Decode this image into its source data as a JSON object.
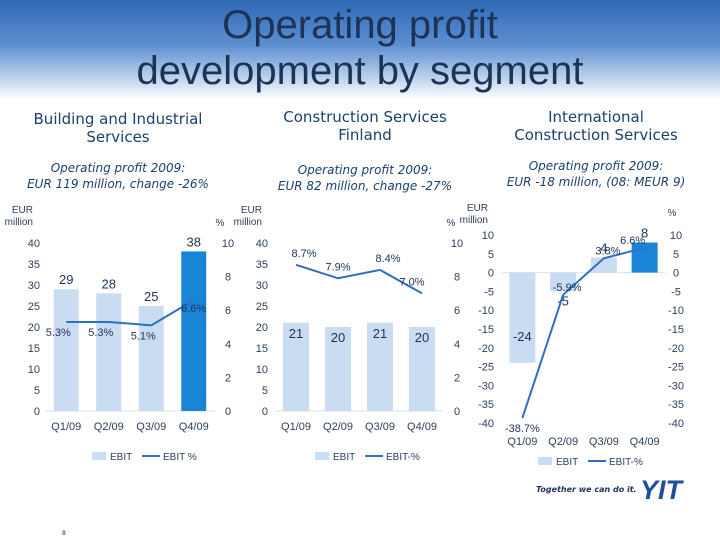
{
  "title_line1": "Operating profit",
  "title_line2": "development by segment",
  "segments": [
    {
      "title_line1": "Building and Industrial",
      "title_line2": "Services",
      "sub_line1": "Operating profit 2009:",
      "sub_line2": "EUR 119 million, change -26%"
    },
    {
      "title_line1": "Construction Services",
      "title_line2": "Finland",
      "sub_line1": "Operating profit 2009:",
      "sub_line2": "EUR 82 million, change -27%"
    },
    {
      "title_line1": "International",
      "title_line2": "Construction Services",
      "sub_line1": "Operating profit 2009:",
      "sub_line2": "EUR -18 million, (08: MEUR 9)"
    }
  ],
  "footer": {
    "slogan": "Together we can do it.",
    "logo": "YIT",
    "page_number": "8"
  },
  "colors": {
    "bar": "#c9dcf2",
    "bar_highlight": "#1a85d6",
    "line": "#2f6fc0",
    "axis_text": "#2b3f5c",
    "value_label": "#1c3357",
    "logo": "#1f4ea1"
  },
  "chart_data": [
    {
      "type": "bar",
      "categories": [
        "Q1/09",
        "Q2/09",
        "Q3/09",
        "Q4/09"
      ],
      "series": [
        {
          "name": "EBIT",
          "values": [
            29,
            28,
            25,
            38
          ]
        },
        {
          "name": "EBIT-%",
          "values": [
            5.3,
            5.3,
            5.1,
            6.6
          ]
        }
      ],
      "value_labels": [
        "29",
        "28",
        "25",
        "38"
      ],
      "pct_labels": [
        "5.3%",
        "5.3%",
        "5.1%",
        "6.6%"
      ],
      "ylabel": "EUR million",
      "y2label": "%",
      "ylim": [
        0,
        40
      ],
      "y2lim": [
        0,
        10
      ],
      "yticks": [
        "0",
        "5",
        "10",
        "15",
        "20",
        "25",
        "30",
        "35",
        "40"
      ],
      "y2ticks": [
        "0",
        "2",
        "4",
        "6",
        "8",
        "10"
      ],
      "legend": [
        "EBIT",
        "EBIT %"
      ],
      "highlight_index": 3
    },
    {
      "type": "bar",
      "categories": [
        "Q1/09",
        "Q2/09",
        "Q3/09",
        "Q4/09"
      ],
      "series": [
        {
          "name": "EBIT",
          "values": [
            21,
            20,
            21,
            20
          ]
        },
        {
          "name": "EBIT-%",
          "values": [
            8.7,
            7.9,
            8.4,
            7.0
          ]
        }
      ],
      "value_labels": [
        "21",
        "20",
        "21",
        "20"
      ],
      "pct_labels": [
        "8.7%",
        "7.9%",
        "8.4%",
        "7.0%"
      ],
      "ylabel": "EUR million",
      "y2label": "%",
      "ylim": [
        0,
        40
      ],
      "y2lim": [
        0,
        10
      ],
      "yticks": [
        "0",
        "5",
        "10",
        "15",
        "20",
        "25",
        "30",
        "35",
        "40"
      ],
      "y2ticks": [
        "0",
        "2",
        "4",
        "6",
        "8",
        "10"
      ],
      "legend": [
        "EBIT",
        "EBIT-%"
      ],
      "highlight_index": -1
    },
    {
      "type": "bar",
      "categories": [
        "Q1/09",
        "Q2/09",
        "Q3/09",
        "Q4/09"
      ],
      "series": [
        {
          "name": "EBIT",
          "values": [
            -24,
            -5,
            4,
            8
          ]
        },
        {
          "name": "EBIT-%",
          "values": [
            -38.7,
            -5.9,
            3.8,
            6.6
          ]
        }
      ],
      "value_labels": [
        "-24",
        "-5",
        "4",
        "8"
      ],
      "pct_labels": [
        "-38.7%",
        "-5.9%",
        "3.8%",
        "6.6%"
      ],
      "ylabel": "EUR million",
      "y2label": "%",
      "ylim": [
        -40,
        10
      ],
      "y2lim": [
        -40,
        10
      ],
      "yticks": [
        "-40",
        "-35",
        "-30",
        "-25",
        "-20",
        "-15",
        "-10",
        "-5",
        "0",
        "5",
        "10"
      ],
      "y2ticks": [
        "-40",
        "-35",
        "-30",
        "-25",
        "-20",
        "-15",
        "-10",
        "-5",
        "0",
        "5",
        "10"
      ],
      "legend": [
        "EBIT",
        "EBIT-%"
      ],
      "highlight_index": 3
    }
  ]
}
